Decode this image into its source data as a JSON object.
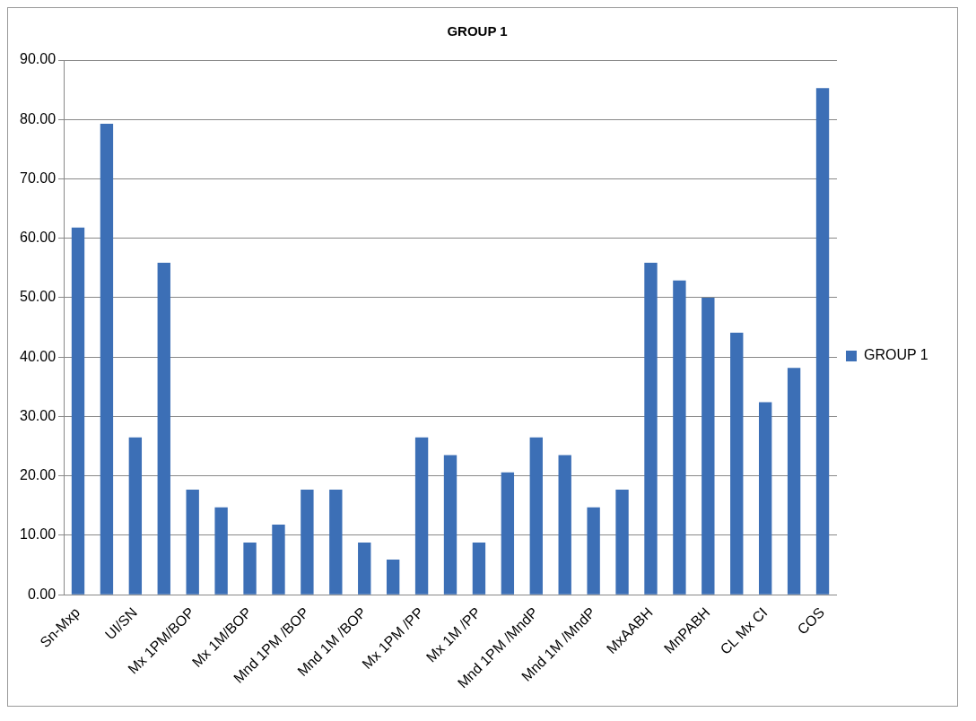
{
  "chart_data": {
    "type": "bar",
    "title": "GROUP 1",
    "categories": [
      "Sn-Mxp",
      null,
      "UI/SN",
      null,
      "Mx 1PM/BOP",
      null,
      "Mx 1M/BOP",
      null,
      "Mnd 1PM /BOP",
      null,
      "Mnd 1M /BOP",
      null,
      "Mx 1PM /PP",
      null,
      "Mx 1M /PP",
      null,
      "Mnd 1PM /MndP",
      null,
      "Mnd 1M /MndP",
      null,
      "MxAABH",
      null,
      "MnPABH",
      null,
      "CL Mx CI",
      null,
      "COS"
    ],
    "series": [
      {
        "name": "GROUP 1",
        "color": "#3c6fb6",
        "values": [
          61.8,
          79.3,
          26.5,
          55.9,
          17.7,
          14.7,
          8.8,
          11.8,
          17.7,
          17.7,
          8.8,
          5.9,
          26.5,
          23.5,
          8.8,
          20.6,
          26.5,
          23.5,
          14.7,
          17.7,
          55.9,
          52.9,
          50.0,
          44.1,
          32.4,
          38.2,
          85.3
        ]
      }
    ],
    "ylim": [
      0,
      90
    ],
    "yticks": [
      {
        "value": 0,
        "label": "0.00"
      },
      {
        "value": 10,
        "label": "10.00"
      },
      {
        "value": 20,
        "label": "20.00"
      },
      {
        "value": 30,
        "label": "30.00"
      },
      {
        "value": 40,
        "label": "40.00"
      },
      {
        "value": 50,
        "label": "50.00"
      },
      {
        "value": 60,
        "label": "60.00"
      },
      {
        "value": 70,
        "label": "70.00"
      },
      {
        "value": 80,
        "label": "80.00"
      },
      {
        "value": 90,
        "label": "90.00"
      }
    ],
    "grid": "y",
    "legend": "right"
  }
}
